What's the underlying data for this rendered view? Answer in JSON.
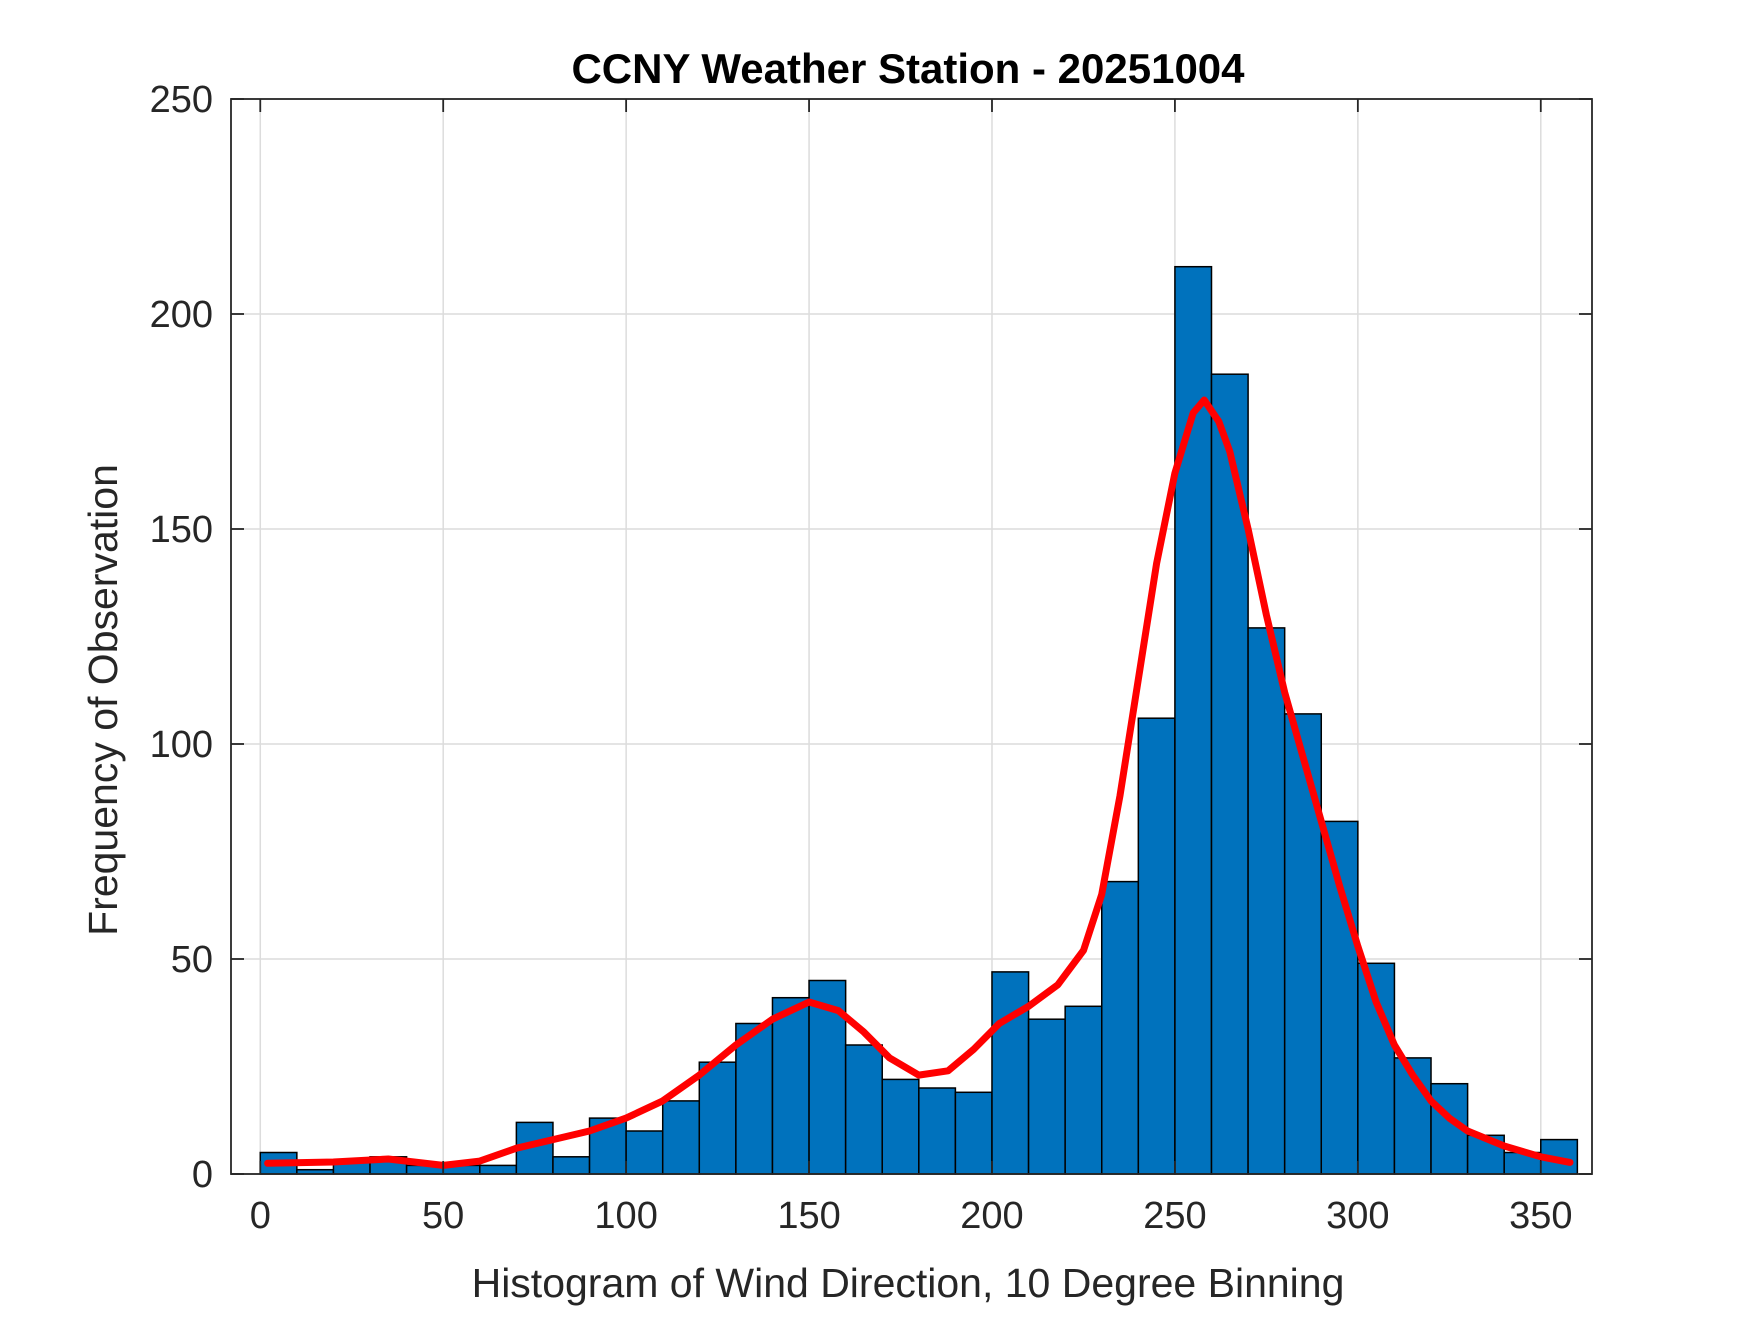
{
  "chart_data": {
    "type": "bar",
    "title": "CCNY Weather Station - 20251004",
    "xlabel": "Histogram of Wind Direction, 10 Degree Binning",
    "ylabel": "Frequency of Observation",
    "xlim": [
      -8,
      364
    ],
    "ylim": [
      0,
      250
    ],
    "xticks": [
      0,
      50,
      100,
      150,
      200,
      250,
      300,
      350
    ],
    "yticks": [
      0,
      50,
      100,
      150,
      200,
      250
    ],
    "grid": true,
    "bin_width": 10,
    "bin_edges": [
      0,
      10,
      20,
      30,
      40,
      50,
      60,
      70,
      80,
      90,
      100,
      110,
      120,
      130,
      140,
      150,
      160,
      170,
      180,
      190,
      200,
      210,
      220,
      230,
      240,
      250,
      260,
      270,
      280,
      290,
      300,
      310,
      320,
      330,
      340,
      350,
      360
    ],
    "values": [
      5,
      1,
      3,
      4,
      2,
      2,
      2,
      12,
      4,
      13,
      10,
      17,
      26,
      35,
      41,
      45,
      30,
      22,
      20,
      19,
      47,
      36,
      39,
      68,
      106,
      211,
      186,
      127,
      107,
      82,
      49,
      27,
      21,
      9,
      5,
      8
    ],
    "bar_color": "#0072BD",
    "series": [
      {
        "type": "line",
        "color": "#FF0000",
        "x": [
          2,
          20,
          35,
          50,
          60,
          70,
          80,
          90,
          100,
          110,
          120,
          130,
          140,
          150,
          158,
          165,
          172,
          180,
          188,
          195,
          202,
          210,
          218,
          225,
          230,
          235,
          240,
          245,
          250,
          255,
          258,
          262,
          265,
          270,
          275,
          280,
          285,
          290,
          295,
          300,
          305,
          310,
          315,
          320,
          325,
          330,
          340,
          350,
          358
        ],
        "y": [
          2.5,
          2.8,
          3.5,
          2,
          3,
          6,
          8,
          10,
          13,
          17,
          23,
          30,
          36,
          40,
          38,
          33,
          27,
          23,
          24,
          29,
          35,
          39,
          44,
          52,
          65,
          88,
          115,
          142,
          163,
          177,
          180,
          175,
          168,
          150,
          130,
          112,
          97,
          82,
          67,
          53,
          40,
          30,
          23,
          17,
          13,
          10,
          6.5,
          4,
          2.7
        ]
      }
    ]
  }
}
